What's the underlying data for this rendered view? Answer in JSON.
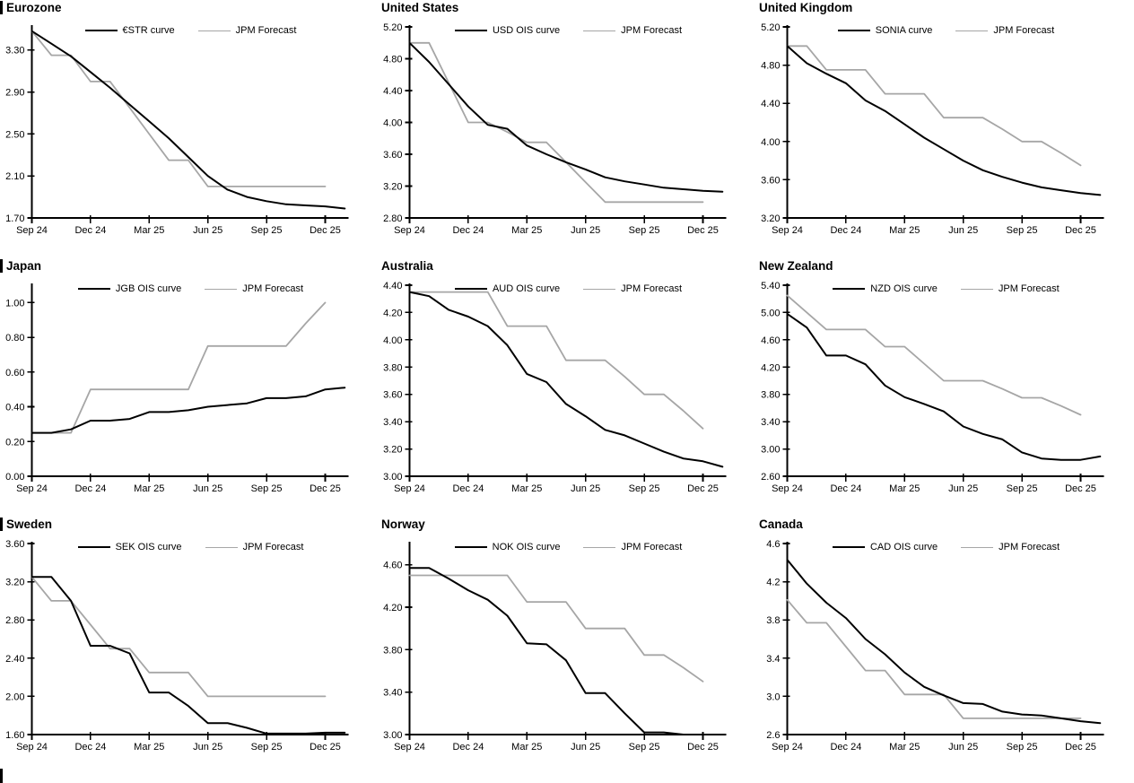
{
  "colors": {
    "background": "#ffffff",
    "curve_black": "#000000",
    "forecast_gray": "#a6a6a6",
    "axis": "#000000"
  },
  "x_axis": {
    "tick_labels": [
      "Sep 24",
      "Dec 24",
      "Mar 25",
      "Jun 25",
      "Sep 25",
      "Dec 25"
    ],
    "tick_positions": [
      0,
      3,
      6,
      9,
      12,
      15
    ],
    "months": [
      "Sep 24",
      "Oct 24",
      "Nov 24",
      "Dec 24",
      "Jan 25",
      "Feb 25",
      "Mar 25",
      "Apr 25",
      "May 25",
      "Jun 25",
      "Jul 25",
      "Aug 25",
      "Sep 25",
      "Oct 25",
      "Nov 25",
      "Dec 25",
      "Jan 26"
    ]
  },
  "chart_data": [
    {
      "type": "line",
      "title": "Eurozone",
      "section_bar": true,
      "ylim": [
        1.7,
        3.52
      ],
      "yticks": [
        3.3,
        2.9,
        2.5,
        2.1,
        1.7
      ],
      "ytick_labels": [
        "3.30",
        "2.90",
        "2.50",
        "2.10",
        "1.70"
      ],
      "legend": [
        "€STR curve",
        "JPM Forecast"
      ],
      "series": [
        {
          "name": "€STR curve",
          "color": "#000000",
          "width": 2,
          "values": [
            3.48,
            3.36,
            3.24,
            3.09,
            2.94,
            2.78,
            2.62,
            2.46,
            2.28,
            2.1,
            1.97,
            1.9,
            1.86,
            1.83,
            1.82,
            1.81,
            1.79
          ]
        },
        {
          "name": "JPM Forecast",
          "color": "#a6a6a6",
          "width": 1.8,
          "values": [
            3.48,
            3.25,
            3.25,
            3.0,
            3.0,
            2.75,
            2.5,
            2.25,
            2.25,
            2.0,
            2.0,
            2.0,
            2.0,
            2.0,
            2.0,
            2.0
          ]
        }
      ]
    },
    {
      "type": "line",
      "title": "United States",
      "section_bar": false,
      "ylim": [
        2.8,
        5.2
      ],
      "yticks": [
        5.2,
        4.8,
        4.4,
        4.0,
        3.6,
        3.2,
        2.8
      ],
      "ytick_labels": [
        "5.20",
        "4.80",
        "4.40",
        "4.00",
        "3.60",
        "3.20",
        "2.80"
      ],
      "legend": [
        "USD OIS curve",
        "JPM Forecast"
      ],
      "series": [
        {
          "name": "USD OIS curve",
          "color": "#000000",
          "width": 2,
          "values": [
            5.0,
            4.76,
            4.48,
            4.2,
            3.97,
            3.92,
            3.71,
            3.6,
            3.5,
            3.41,
            3.31,
            3.26,
            3.22,
            3.18,
            3.16,
            3.14,
            3.13
          ]
        },
        {
          "name": "JPM Forecast",
          "color": "#a6a6a6",
          "width": 1.8,
          "values": [
            5.0,
            5.0,
            4.5,
            4.0,
            4.0,
            3.88,
            3.75,
            3.75,
            3.5,
            3.25,
            3.0,
            3.0,
            3.0,
            3.0,
            3.0,
            3.0
          ]
        }
      ]
    },
    {
      "type": "line",
      "title": "United Kingdom",
      "section_bar": false,
      "ylim": [
        3.2,
        5.2
      ],
      "yticks": [
        5.2,
        4.8,
        4.4,
        4.0,
        3.6,
        3.2
      ],
      "ytick_labels": [
        "5.20",
        "4.80",
        "4.40",
        "4.00",
        "3.60",
        "3.20"
      ],
      "legend": [
        "SONIA curve",
        "JPM Forecast"
      ],
      "series": [
        {
          "name": "SONIA curve",
          "color": "#000000",
          "width": 2,
          "values": [
            5.0,
            4.82,
            4.71,
            4.61,
            4.43,
            4.32,
            4.18,
            4.04,
            3.92,
            3.8,
            3.7,
            3.63,
            3.57,
            3.52,
            3.49,
            3.46,
            3.44
          ]
        },
        {
          "name": "JPM Forecast",
          "color": "#a6a6a6",
          "width": 1.8,
          "values": [
            5.0,
            5.0,
            4.75,
            4.75,
            4.75,
            4.5,
            4.5,
            4.5,
            4.25,
            4.25,
            4.25,
            4.13,
            4.0,
            4.0,
            3.88,
            3.75
          ]
        }
      ]
    },
    {
      "type": "line",
      "title": "Japan",
      "section_bar": true,
      "ylim": [
        0.0,
        1.1
      ],
      "yticks": [
        1.0,
        0.8,
        0.6,
        0.4,
        0.2,
        0.0
      ],
      "ytick_labels": [
        "1.00",
        "0.80",
        "0.60",
        "0.40",
        "0.20",
        "0.00"
      ],
      "legend": [
        "JGB OIS curve",
        "JPM Forecast"
      ],
      "series": [
        {
          "name": "JGB OIS curve",
          "color": "#000000",
          "width": 2,
          "values": [
            0.25,
            0.25,
            0.27,
            0.32,
            0.32,
            0.33,
            0.37,
            0.37,
            0.38,
            0.4,
            0.41,
            0.42,
            0.45,
            0.45,
            0.46,
            0.5,
            0.51
          ]
        },
        {
          "name": "JPM Forecast",
          "color": "#a6a6a6",
          "width": 1.8,
          "values": [
            0.25,
            0.25,
            0.25,
            0.5,
            0.5,
            0.5,
            0.5,
            0.5,
            0.5,
            0.75,
            0.75,
            0.75,
            0.75,
            0.75,
            0.88,
            1.0
          ]
        }
      ]
    },
    {
      "type": "line",
      "title": "Australia",
      "section_bar": false,
      "ylim": [
        3.0,
        4.4
      ],
      "yticks": [
        4.4,
        4.2,
        4.0,
        3.8,
        3.6,
        3.4,
        3.2,
        3.0
      ],
      "ytick_labels": [
        "4.40",
        "4.20",
        "4.00",
        "3.80",
        "3.60",
        "3.40",
        "3.20",
        "3.00"
      ],
      "legend": [
        "AUD OIS curve",
        "JPM Forecast"
      ],
      "series": [
        {
          "name": "AUD OIS curve",
          "color": "#000000",
          "width": 2,
          "values": [
            4.35,
            4.32,
            4.22,
            4.17,
            4.1,
            3.96,
            3.75,
            3.69,
            3.53,
            3.44,
            3.34,
            3.3,
            3.24,
            3.18,
            3.13,
            3.11,
            3.07
          ]
        },
        {
          "name": "JPM Forecast",
          "color": "#a6a6a6",
          "width": 1.8,
          "values": [
            4.35,
            4.35,
            4.35,
            4.35,
            4.35,
            4.1,
            4.1,
            4.1,
            3.85,
            3.85,
            3.85,
            3.73,
            3.6,
            3.6,
            3.48,
            3.35
          ]
        }
      ]
    },
    {
      "type": "line",
      "title": "New Zealand",
      "section_bar": false,
      "ylim": [
        2.6,
        5.4
      ],
      "yticks": [
        5.4,
        5.0,
        4.6,
        4.2,
        3.8,
        3.4,
        3.0,
        2.6
      ],
      "ytick_labels": [
        "5.40",
        "5.00",
        "4.60",
        "4.20",
        "3.80",
        "3.40",
        "3.00",
        "2.60"
      ],
      "legend": [
        "NZD OIS curve",
        "JPM Forecast"
      ],
      "series": [
        {
          "name": "NZD OIS curve",
          "color": "#000000",
          "width": 2,
          "values": [
            4.98,
            4.78,
            4.37,
            4.37,
            4.24,
            3.93,
            3.76,
            3.66,
            3.55,
            3.33,
            3.22,
            3.14,
            2.95,
            2.86,
            2.84,
            2.84,
            2.89
          ]
        },
        {
          "name": "JPM Forecast",
          "color": "#a6a6a6",
          "width": 1.8,
          "values": [
            5.25,
            5.0,
            4.75,
            4.75,
            4.75,
            4.5,
            4.5,
            4.25,
            4.0,
            4.0,
            4.0,
            3.88,
            3.75,
            3.75,
            3.63,
            3.5
          ]
        }
      ]
    },
    {
      "type": "line",
      "title": "Sweden",
      "section_bar": true,
      "ylim": [
        1.6,
        3.6
      ],
      "yticks": [
        3.6,
        3.2,
        2.8,
        2.4,
        2.0,
        1.6
      ],
      "ytick_labels": [
        "3.60",
        "3.20",
        "2.80",
        "2.40",
        "2.00",
        "1.60"
      ],
      "legend": [
        "SEK OIS curve",
        "JPM Forecast"
      ],
      "series": [
        {
          "name": "SEK OIS curve",
          "color": "#000000",
          "width": 2,
          "values": [
            3.25,
            3.25,
            3.0,
            2.53,
            2.53,
            2.45,
            2.04,
            2.04,
            1.9,
            1.72,
            1.72,
            1.67,
            1.61,
            1.61,
            1.61,
            1.62,
            1.62
          ]
        },
        {
          "name": "JPM Forecast",
          "color": "#a6a6a6",
          "width": 1.8,
          "values": [
            3.25,
            3.0,
            3.0,
            2.75,
            2.5,
            2.5,
            2.25,
            2.25,
            2.25,
            2.0,
            2.0,
            2.0,
            2.0,
            2.0,
            2.0,
            2.0
          ]
        }
      ]
    },
    {
      "type": "line",
      "title": "Norway",
      "section_bar": false,
      "ylim": [
        3.0,
        4.8
      ],
      "yticks": [
        4.6,
        4.2,
        3.8,
        3.4,
        3.0
      ],
      "ytick_labels": [
        "4.60",
        "4.20",
        "3.80",
        "3.40",
        "3.00"
      ],
      "legend": [
        "NOK OIS curve",
        "JPM Forecast"
      ],
      "series": [
        {
          "name": "NOK OIS curve",
          "color": "#000000",
          "width": 2,
          "values": [
            4.57,
            4.57,
            4.47,
            4.36,
            4.27,
            4.12,
            3.86,
            3.85,
            3.7,
            3.39,
            3.39,
            3.2,
            3.02,
            3.02,
            3.0,
            3.0,
            3.0
          ]
        },
        {
          "name": "JPM Forecast",
          "color": "#a6a6a6",
          "width": 1.8,
          "values": [
            4.5,
            4.5,
            4.5,
            4.5,
            4.5,
            4.5,
            4.25,
            4.25,
            4.25,
            4.0,
            4.0,
            4.0,
            3.75,
            3.75,
            3.63,
            3.5
          ]
        }
      ]
    },
    {
      "type": "line",
      "title": "Canada",
      "section_bar": false,
      "ylim": [
        2.6,
        4.6
      ],
      "yticks": [
        4.6,
        4.2,
        3.8,
        3.4,
        3.0,
        2.6
      ],
      "ytick_labels": [
        "4.6",
        "4.2",
        "3.8",
        "3.4",
        "3.0",
        "2.6"
      ],
      "legend": [
        "CAD OIS curve",
        "JPM Forecast"
      ],
      "series": [
        {
          "name": "CAD OIS curve",
          "color": "#000000",
          "width": 2,
          "values": [
            4.43,
            4.18,
            3.98,
            3.82,
            3.6,
            3.44,
            3.25,
            3.1,
            3.01,
            2.93,
            2.92,
            2.84,
            2.81,
            2.8,
            2.77,
            2.74,
            2.72
          ]
        },
        {
          "name": "JPM Forecast",
          "color": "#a6a6a6",
          "width": 1.8,
          "values": [
            4.01,
            3.77,
            3.77,
            3.52,
            3.27,
            3.27,
            3.02,
            3.02,
            3.02,
            2.77,
            2.77,
            2.77,
            2.77,
            2.77,
            2.77,
            2.77
          ]
        }
      ]
    }
  ]
}
